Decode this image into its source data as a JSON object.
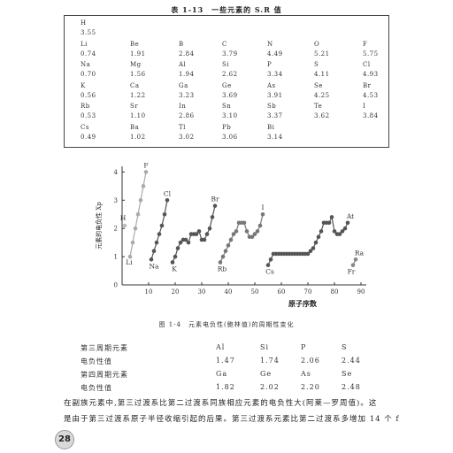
{
  "table": {
    "title": "表 1-13　一些元素的 S.R 值",
    "rows": [
      [
        [
          "H",
          "3.55"
        ]
      ],
      [
        [
          "Li",
          "0.74"
        ],
        [
          "Be",
          "1.91"
        ],
        [
          "B",
          "2.84"
        ],
        [
          "C",
          "3.79"
        ],
        [
          "N",
          "4.49"
        ],
        [
          "O",
          "5.21"
        ],
        [
          "F",
          "5.75"
        ]
      ],
      [
        [
          "Na",
          "0.70"
        ],
        [
          "Mg",
          "1.56"
        ],
        [
          "Al",
          "1.94"
        ],
        [
          "Si",
          "2.62"
        ],
        [
          "P",
          "3.34"
        ],
        [
          "S",
          "4.11"
        ],
        [
          "Cl",
          "4.93"
        ]
      ],
      [
        [
          "K",
          "0.56"
        ],
        [
          "Ca",
          "1.22"
        ],
        [
          "Ga",
          "3.23"
        ],
        [
          "Ge",
          "3.69"
        ],
        [
          "As",
          "3.91"
        ],
        [
          "Se",
          "4.25"
        ],
        [
          "Br",
          "4.53"
        ]
      ],
      [
        [
          "Rb",
          "0.53"
        ],
        [
          "Sr",
          "1.10"
        ],
        [
          "In",
          "2.86"
        ],
        [
          "Sn",
          "3.10"
        ],
        [
          "Sb",
          "3.37"
        ],
        [
          "Te",
          "3.62"
        ],
        [
          "I",
          "3.84"
        ]
      ],
      [
        [
          "Cs",
          "0.49"
        ],
        [
          "Ba",
          "1.02"
        ],
        [
          "Tl",
          "3.02"
        ],
        [
          "Pb",
          "3.06"
        ],
        [
          "Bi",
          "3.14"
        ]
      ]
    ]
  },
  "chart_data": {
    "type": "scatter",
    "xlabel": "原子序数",
    "ylabel": "元素的电负性 Xp",
    "xlim": [
      0,
      92
    ],
    "ylim": [
      0,
      4.2
    ],
    "xticks": [
      10,
      20,
      30,
      40,
      50,
      60,
      70,
      80,
      90
    ],
    "yticks": [
      0,
      1,
      2,
      3,
      4
    ],
    "segments": [
      {
        "color": "#bbbbbb",
        "points": [
          [
            1,
            2.1
          ]
        ]
      },
      {
        "color": "#aaaaaa",
        "points": [
          [
            3,
            1.0
          ],
          [
            4,
            1.5
          ],
          [
            5,
            2.0
          ],
          [
            6,
            2.5
          ],
          [
            7,
            3.0
          ],
          [
            8,
            3.5
          ],
          [
            9,
            4.0
          ]
        ]
      },
      {
        "color": "#555555",
        "points": [
          [
            11,
            0.9
          ],
          [
            12,
            1.2
          ],
          [
            13,
            1.5
          ],
          [
            14,
            1.8
          ],
          [
            15,
            2.1
          ],
          [
            16,
            2.5
          ],
          [
            17,
            3.0
          ]
        ]
      },
      {
        "color": "#555555",
        "points": [
          [
            19,
            0.8
          ],
          [
            20,
            1.0
          ],
          [
            21,
            1.3
          ],
          [
            22,
            1.5
          ],
          [
            23,
            1.6
          ],
          [
            24,
            1.6
          ],
          [
            25,
            1.5
          ],
          [
            26,
            1.8
          ],
          [
            27,
            1.8
          ],
          [
            28,
            1.8
          ],
          [
            29,
            1.9
          ],
          [
            30,
            1.6
          ],
          [
            31,
            1.6
          ],
          [
            32,
            1.8
          ],
          [
            33,
            2.0
          ],
          [
            34,
            2.4
          ],
          [
            35,
            2.8
          ]
        ]
      },
      {
        "color": "#777777",
        "points": [
          [
            37,
            0.8
          ],
          [
            38,
            1.0
          ],
          [
            39,
            1.2
          ],
          [
            40,
            1.4
          ],
          [
            41,
            1.6
          ],
          [
            42,
            1.8
          ],
          [
            43,
            1.9
          ],
          [
            44,
            2.2
          ],
          [
            45,
            2.2
          ],
          [
            46,
            2.2
          ],
          [
            47,
            1.9
          ],
          [
            48,
            1.7
          ],
          [
            49,
            1.7
          ],
          [
            50,
            1.8
          ],
          [
            51,
            1.9
          ],
          [
            52,
            2.1
          ],
          [
            53,
            2.5
          ]
        ]
      },
      {
        "color": "#555555",
        "points": [
          [
            55,
            0.7
          ],
          [
            56,
            0.9
          ],
          [
            57,
            1.1
          ],
          [
            58,
            1.1
          ],
          [
            59,
            1.1
          ],
          [
            60,
            1.1
          ],
          [
            61,
            1.1
          ],
          [
            62,
            1.1
          ],
          [
            63,
            1.1
          ],
          [
            64,
            1.1
          ],
          [
            65,
            1.1
          ],
          [
            66,
            1.1
          ],
          [
            67,
            1.1
          ],
          [
            68,
            1.1
          ],
          [
            69,
            1.1
          ],
          [
            70,
            1.1
          ],
          [
            71,
            1.2
          ],
          [
            72,
            1.3
          ],
          [
            73,
            1.5
          ],
          [
            74,
            1.7
          ],
          [
            75,
            1.9
          ],
          [
            76,
            2.2
          ],
          [
            77,
            2.2
          ],
          [
            78,
            2.2
          ],
          [
            79,
            2.4
          ],
          [
            80,
            1.9
          ],
          [
            81,
            1.8
          ],
          [
            82,
            1.8
          ],
          [
            83,
            1.9
          ],
          [
            84,
            2.0
          ],
          [
            85,
            2.2
          ]
        ]
      },
      {
        "color": "#888888",
        "points": [
          [
            87,
            0.7
          ],
          [
            88,
            0.9
          ]
        ]
      }
    ],
    "labels": [
      {
        "text": "H",
        "x": 1,
        "y": 2.1
      },
      {
        "text": "Li",
        "x": 3,
        "y": 1.0
      },
      {
        "text": "F",
        "x": 9,
        "y": 4.0
      },
      {
        "text": "Na",
        "x": 11,
        "y": 0.9
      },
      {
        "text": "Cl",
        "x": 17,
        "y": 3.0
      },
      {
        "text": "K",
        "x": 19,
        "y": 0.8
      },
      {
        "text": "Br",
        "x": 35,
        "y": 2.8
      },
      {
        "text": "Rb",
        "x": 37,
        "y": 0.8
      },
      {
        "text": "I",
        "x": 53,
        "y": 2.5
      },
      {
        "text": "Cs",
        "x": 55,
        "y": 0.7
      },
      {
        "text": "At",
        "x": 85,
        "y": 2.2
      },
      {
        "text": "Ra",
        "x": 88,
        "y": 0.9
      },
      {
        "text": "Fr",
        "x": 87,
        "y": 0.7
      }
    ]
  },
  "figure_caption": "图 1-4　元素电负性(鲍林值)的周期性变化",
  "comparison": {
    "rows": [
      [
        "第三周期元素",
        "Al",
        "Si",
        "P",
        "S"
      ],
      [
        "电负性值",
        "1.47",
        "1.74",
        "2.06",
        "2.44"
      ],
      [
        "第四周期元素",
        "Ga",
        "Ge",
        "As",
        "Se"
      ],
      [
        "电负性值",
        "1.82",
        "2.02",
        "2.20",
        "2.48"
      ]
    ]
  },
  "paragraph": [
    "在副族元素中,第三过渡系比第二过渡系同族相应元素的电负性大(阿莱—罗周值)。这",
    "是由于第三过渡系原子半径收缩引起的后果。第三过渡系元素比第二过渡系多增加 14 个 f"
  ],
  "page_number": "28"
}
